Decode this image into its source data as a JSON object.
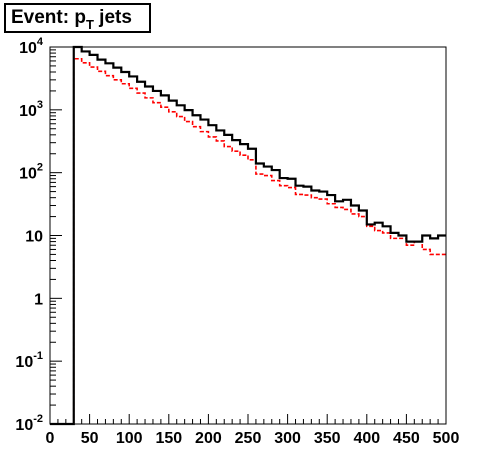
{
  "chart_data": {
    "type": "line",
    "title": {
      "prefix": "Event: p",
      "subscript": "T",
      "suffix": " jets"
    },
    "xlabel": "",
    "ylabel": "",
    "xlim": [
      0,
      500
    ],
    "ylim": [
      0.01,
      10000
    ],
    "yscale": "log",
    "grid": false,
    "legend": "none",
    "x_ticks": [
      0,
      50,
      100,
      150,
      200,
      250,
      300,
      350,
      400,
      450,
      500
    ],
    "x_tick_labels": [
      "0",
      "50",
      "100",
      "150",
      "200",
      "250",
      "300",
      "350",
      "400",
      "450",
      "500"
    ],
    "y_ticks": [
      {
        "value": 0.01,
        "base": "10",
        "exp": "-2"
      },
      {
        "value": 0.1,
        "base": "10",
        "exp": "-1"
      },
      {
        "value": 1,
        "base": "1",
        "exp": ""
      },
      {
        "value": 10,
        "base": "10",
        "exp": ""
      },
      {
        "value": 100,
        "base": "10",
        "exp": "2"
      },
      {
        "value": 1000,
        "base": "10",
        "exp": "3"
      },
      {
        "value": 10000,
        "base": "10",
        "exp": "4"
      }
    ],
    "bin_edges": [
      0,
      10,
      20,
      30,
      40,
      50,
      60,
      70,
      80,
      90,
      100,
      110,
      120,
      130,
      140,
      150,
      160,
      170,
      180,
      190,
      200,
      210,
      220,
      230,
      240,
      250,
      260,
      270,
      280,
      290,
      300,
      310,
      320,
      330,
      340,
      350,
      360,
      370,
      380,
      390,
      400,
      410,
      420,
      430,
      440,
      450,
      460,
      470,
      480,
      490,
      500
    ],
    "series": [
      {
        "color": "#000000",
        "line": "solid",
        "values": [
          0.01,
          0.01,
          0.01,
          10000,
          8500,
          7500,
          6300,
          5500,
          4700,
          4000,
          3400,
          2800,
          2350,
          2000,
          1700,
          1400,
          1180,
          990,
          820,
          700,
          570,
          470,
          400,
          330,
          285,
          240,
          140,
          125,
          110,
          82,
          80,
          62,
          60,
          52,
          50,
          44,
          35,
          37,
          30,
          25,
          15,
          16,
          14,
          11,
          10,
          8,
          8,
          10,
          9,
          10
        ]
      },
      {
        "color": "#ff0000",
        "line": "dashed",
        "values": [
          0.01,
          0.01,
          0.01,
          6500,
          5600,
          4800,
          4100,
          3500,
          3000,
          2600,
          2200,
          1850,
          1550,
          1300,
          1100,
          930,
          780,
          650,
          540,
          450,
          370,
          320,
          260,
          220,
          190,
          160,
          95,
          90,
          75,
          62,
          58,
          45,
          44,
          40,
          38,
          32,
          28,
          26,
          22,
          20,
          14,
          12,
          11,
          9,
          9,
          7,
          8,
          6,
          5,
          5
        ]
      }
    ]
  }
}
